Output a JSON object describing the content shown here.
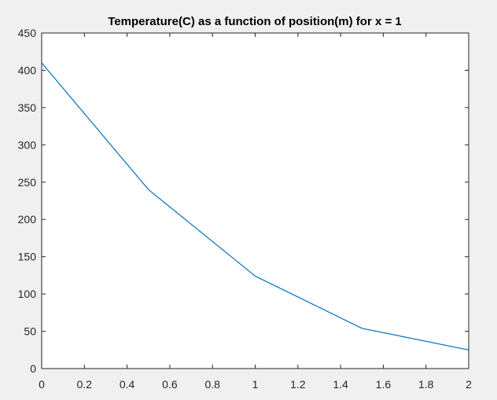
{
  "figure": {
    "background": "#f0f0f0",
    "axes_background": "#ffffff",
    "axis_color": "#262626"
  },
  "chart_data": {
    "type": "line",
    "title": "Temperature(C) as a function of position(m) for x = 1",
    "xlabel": "",
    "ylabel": "",
    "xlim": [
      0,
      2
    ],
    "ylim": [
      0,
      450
    ],
    "xticks": [
      0,
      0.2,
      0.4,
      0.6,
      0.8,
      1,
      1.2,
      1.4,
      1.6,
      1.8,
      2
    ],
    "xtick_labels": [
      "0",
      "0.2",
      "0.4",
      "0.6",
      "0.8",
      "1",
      "1.2",
      "1.4",
      "1.6",
      "1.8",
      "2"
    ],
    "yticks": [
      0,
      50,
      100,
      150,
      200,
      250,
      300,
      350,
      400,
      450
    ],
    "ytick_labels": [
      "0",
      "50",
      "100",
      "150",
      "200",
      "250",
      "300",
      "350",
      "400",
      "450"
    ],
    "grid": false,
    "series": [
      {
        "color": "#0072bd",
        "x": [
          0,
          0.5,
          1,
          1.5,
          2
        ],
        "y": [
          410,
          240,
          124,
          54,
          25
        ]
      }
    ]
  }
}
